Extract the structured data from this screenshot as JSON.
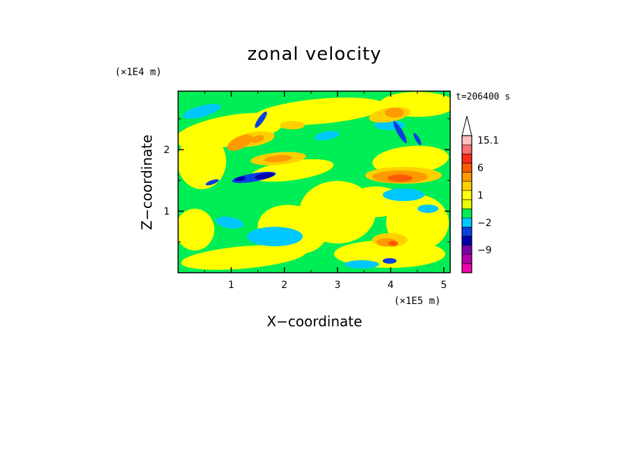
{
  "chart_data": {
    "type": "heatmap",
    "subtype": "filled-contour",
    "title": "zonal velocity",
    "xlabel": "X−coordinate",
    "ylabel": "Z−coordinate",
    "x_unit": "(×1E5 m)",
    "y_unit": "(×1E4 m)",
    "time_label": "t=206400 s",
    "xlim": [
      0,
      5.12
    ],
    "ylim": [
      0,
      2.95
    ],
    "x_ticks": [
      1,
      2,
      3,
      4,
      5
    ],
    "y_ticks": [
      1,
      2
    ],
    "x_tick_labels": [
      "1",
      "2",
      "3",
      "4",
      "5"
    ],
    "y_tick_labels": [
      "1",
      "2"
    ],
    "colorbar": {
      "levels": [
        -15,
        -12,
        -9,
        -6,
        -3,
        -2,
        -1,
        0,
        1,
        2,
        3,
        6,
        9,
        12,
        15.1
      ],
      "colors": [
        "#ee00aa",
        "#b400a8",
        "#7a00aa",
        "#0000aa",
        "#0a3fe0",
        "#00c8ff",
        "#00ee55",
        "#e8ff00",
        "#ffff00",
        "#ffd000",
        "#ff9a00",
        "#ff5a00",
        "#ff2a1a",
        "#ff7070",
        "#ffc0c0"
      ],
      "labels": [
        {
          "text": "15.1",
          "value": 15.1
        },
        {
          "text": "6",
          "value": 6
        },
        {
          "text": "1",
          "value": 1
        },
        {
          "text": "−2",
          "value": -2
        },
        {
          "text": "−9",
          "value": -9
        }
      ],
      "extend": "max"
    }
  }
}
